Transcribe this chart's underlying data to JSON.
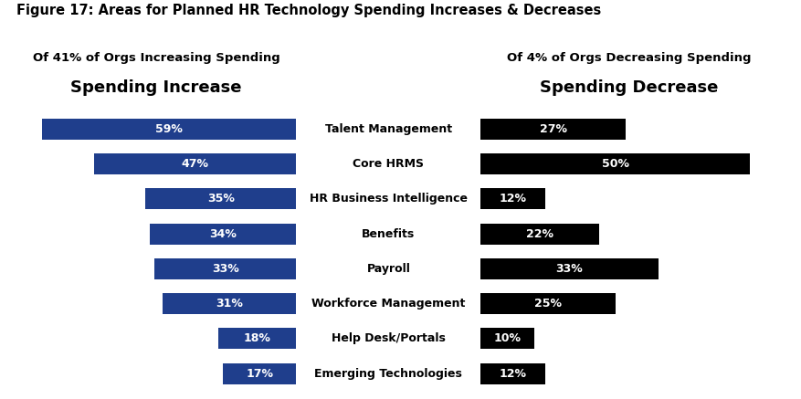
{
  "figure_title": "Figure 17: Areas for Planned HR Technology Spending Increases & Decreases",
  "left_subtitle1": "Of 41% of Orgs Increasing Spending",
  "left_subtitle2": "Spending Increase",
  "right_subtitle1": "Of 4% of Orgs Decreasing Spending",
  "right_subtitle2": "Spending Decrease",
  "categories": [
    "Talent Management",
    "Core HRMS",
    "HR Business Intelligence",
    "Benefits",
    "Payroll",
    "Workforce Management",
    "Help Desk/Portals",
    "Emerging Technologies"
  ],
  "increase_values": [
    59,
    47,
    35,
    34,
    33,
    31,
    18,
    17
  ],
  "decrease_values": [
    27,
    50,
    12,
    22,
    33,
    25,
    10,
    12
  ],
  "increase_color": "#1F3E8C",
  "decrease_color": "#000000",
  "bar_text_color": "#FFFFFF",
  "background_color": "#FFFFFF",
  "title_fontsize": 10.5,
  "subtitle1_fontsize": 9.5,
  "subtitle2_fontsize": 13,
  "category_fontsize": 9.0,
  "bar_value_fontsize": 9.0,
  "max_increase": 65,
  "max_decrease": 55
}
